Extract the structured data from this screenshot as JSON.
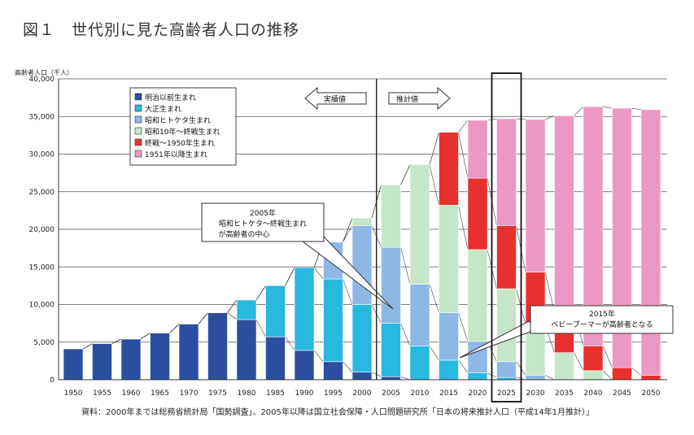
{
  "title": "図１　世代別に見た高齢者人口の推移",
  "source": "資料：2000年までは総務省統計局「国勢調査」、2005年以降は国立社会保障・人口問題研究所「日本の将来推計人口（平成14年1月推計）」",
  "colors": {
    "meiji": "#2b4f9e",
    "taisho": "#29b8e0",
    "showa_hitoketa": "#8db8e6",
    "showa10": "#c5e6c8",
    "shusen": "#e8302e",
    "post1951": "#ec98c4"
  },
  "labels": {
    "actual": "実績値",
    "projected": "推計値"
  },
  "annotations": [
    {
      "lines": [
        "2005年",
        "昭和ヒトケタ～終戦生まれ",
        "が高齢者の中心"
      ]
    },
    {
      "lines": [
        "2015年",
        "ベビーブーマーが高齢者となる"
      ]
    }
  ],
  "chart_data": {
    "type": "bar",
    "stacked": true,
    "ylabel": "高齢者人口（千人）",
    "ylim": [
      0,
      40000
    ],
    "yticks": [
      "0",
      "5,000",
      "10,000",
      "15,000",
      "20,000",
      "25,000",
      "30,000",
      "35,000",
      "40,000"
    ],
    "categories": [
      "1950",
      "1955",
      "1960",
      "1965",
      "1970",
      "1975",
      "1980",
      "1985",
      "1990",
      "1995",
      "2000",
      "2005",
      "2010",
      "2015",
      "2020",
      "2025",
      "2030",
      "2035",
      "2040",
      "2045",
      "2050"
    ],
    "highlight": "2025",
    "divider_after": "2000",
    "legend_position": "top-left",
    "series": [
      {
        "name": "明治以前生まれ",
        "key": "meiji",
        "values": [
          4100,
          4800,
          5400,
          6200,
          7400,
          8900,
          8000,
          5700,
          3900,
          2400,
          1000,
          400,
          0,
          0,
          0,
          0,
          0,
          0,
          0,
          0,
          0
        ]
      },
      {
        "name": "大正生まれ",
        "key": "taisho",
        "values": [
          0,
          0,
          0,
          0,
          0,
          0,
          2600,
          6800,
          11000,
          11000,
          9000,
          7100,
          4500,
          2600,
          900,
          300,
          0,
          0,
          0,
          0,
          0
        ]
      },
      {
        "name": "昭和ヒトケタ生まれ",
        "key": "showa_hitoketa",
        "values": [
          0,
          0,
          0,
          0,
          0,
          0,
          0,
          0,
          0,
          4900,
          10500,
          10100,
          8200,
          6300,
          4200,
          2100,
          600,
          0,
          0,
          0,
          0
        ]
      },
      {
        "name": "昭和10年～終戦生まれ",
        "key": "showa10",
        "values": [
          0,
          0,
          0,
          0,
          0,
          0,
          0,
          0,
          0,
          0,
          1000,
          8300,
          15900,
          14300,
          12200,
          9700,
          6700,
          3600,
          1200,
          0,
          0
        ]
      },
      {
        "name": "終戦～1950年生まれ",
        "key": "shusen",
        "values": [
          0,
          0,
          0,
          0,
          0,
          0,
          0,
          0,
          0,
          0,
          0,
          0,
          0,
          9700,
          9500,
          8400,
          7000,
          5400,
          3300,
          1600,
          600
        ]
      },
      {
        "name": "1951年以降生まれ",
        "key": "post1951",
        "values": [
          0,
          0,
          0,
          0,
          0,
          0,
          0,
          0,
          0,
          0,
          0,
          0,
          0,
          0,
          7700,
          14200,
          20300,
          26100,
          31800,
          34500,
          35300
        ]
      }
    ]
  }
}
